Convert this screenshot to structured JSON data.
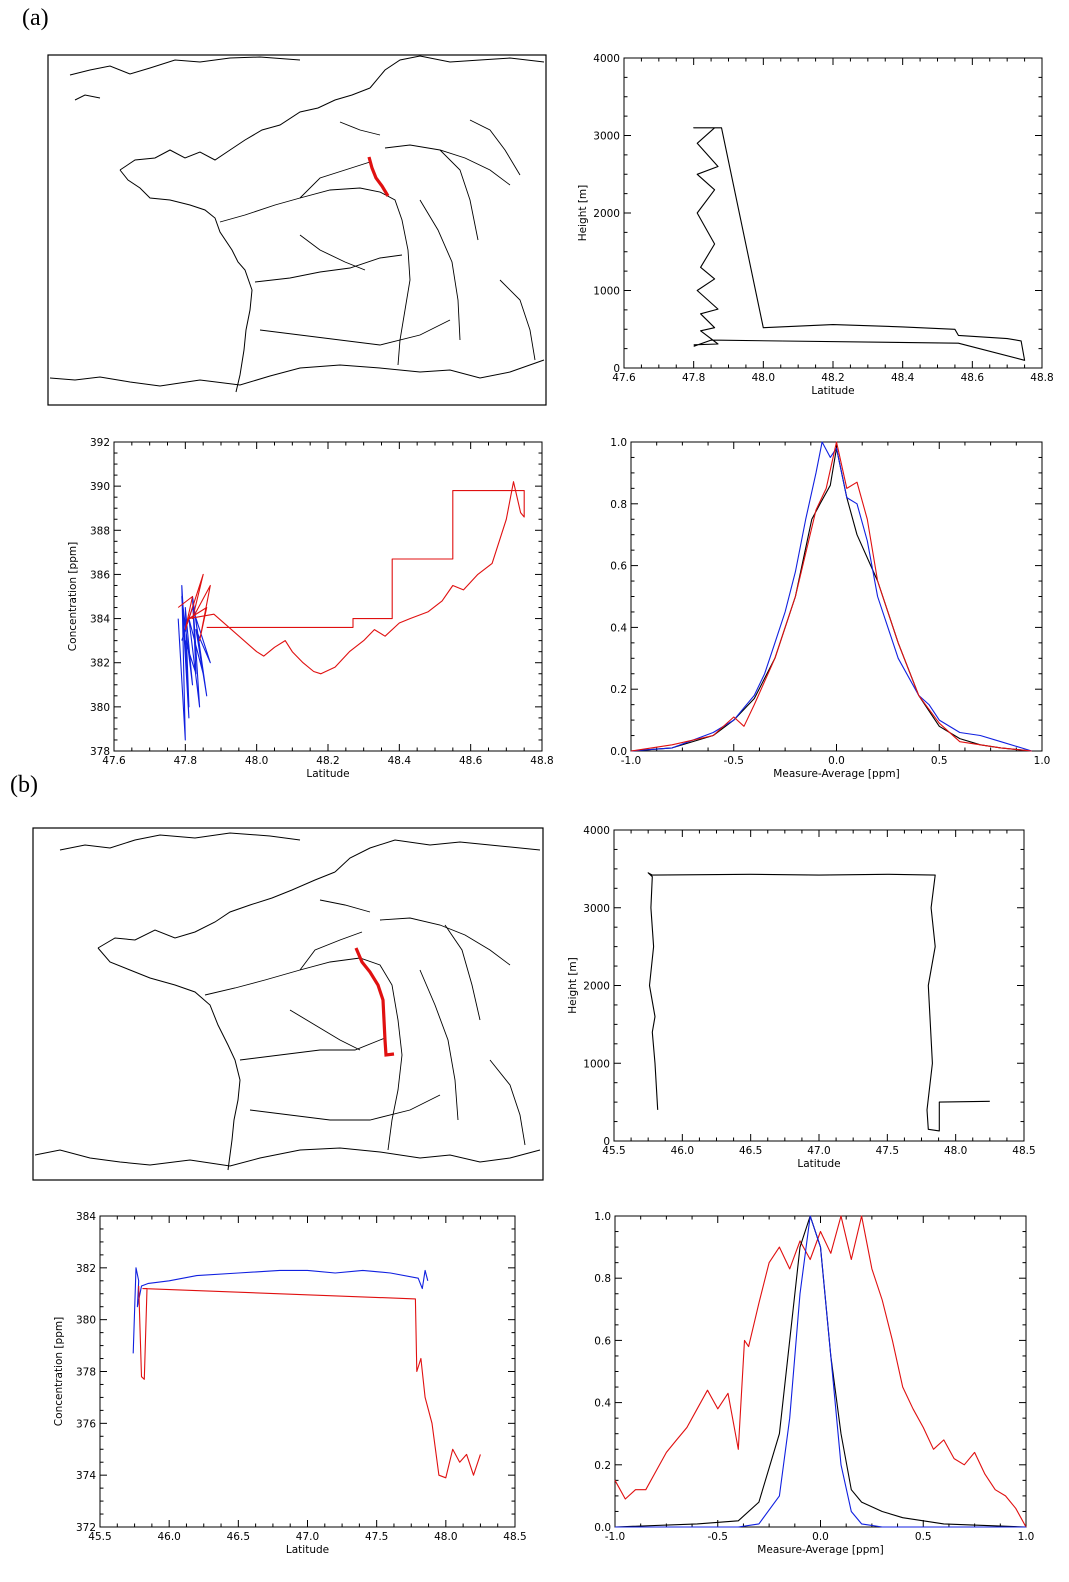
{
  "labels": {
    "a": "(a)",
    "b": "(b)"
  },
  "colors": {
    "red": "#e01010",
    "blue": "#1020e0",
    "black": "#000000"
  },
  "maps": [
    {
      "panel": "a",
      "type": "map",
      "track_color": "red"
    },
    {
      "panel": "b",
      "type": "map",
      "track_color": "red"
    }
  ],
  "chart_data": [
    {
      "id": "a-height",
      "type": "line",
      "xlabel": "Latitude",
      "ylabel": "Height [m]",
      "xlim": [
        47.6,
        48.8
      ],
      "ylim": [
        0,
        4000
      ],
      "xticks": [
        "47.6",
        "47.8",
        "48.0",
        "48.2",
        "48.4",
        "48.6",
        "48.8"
      ],
      "yticks": [
        "0",
        "1000",
        "2000",
        "3000",
        "4000"
      ],
      "series": [
        {
          "color": "black",
          "x": [
            47.8,
            47.87,
            47.82,
            47.86,
            47.82,
            47.87,
            47.81,
            47.86,
            47.82,
            47.86,
            47.81,
            47.86,
            47.81,
            47.87,
            47.81,
            47.86,
            47.8,
            47.88,
            48.0,
            48.2,
            48.4,
            48.55,
            48.56,
            48.7,
            48.74,
            48.75,
            48.56,
            47.85,
            47.8
          ],
          "y": [
            300,
            310,
            480,
            520,
            700,
            760,
            1000,
            1150,
            1300,
            1600,
            2000,
            2300,
            2500,
            2600,
            2900,
            3100,
            3100,
            3100,
            520,
            560,
            530,
            500,
            420,
            380,
            350,
            100,
            320,
            360,
            280
          ]
        }
      ]
    },
    {
      "id": "a-concentration",
      "type": "line",
      "xlabel": "Latitude",
      "ylabel": "Concentration [ppm]",
      "xlim": [
        47.6,
        48.8
      ],
      "ylim": [
        378,
        392
      ],
      "xticks": [
        "47.6",
        "47.8",
        "48.0",
        "48.2",
        "48.4",
        "48.6",
        "48.8"
      ],
      "yticks": [
        "378",
        "380",
        "382",
        "384",
        "386",
        "388",
        "390",
        "392"
      ],
      "series": [
        {
          "color": "blue",
          "x": [
            47.78,
            47.8,
            47.79,
            47.81,
            47.8,
            47.82,
            47.79,
            47.81,
            47.8,
            47.83,
            47.82,
            47.84,
            47.81,
            47.85,
            47.82,
            47.86,
            47.83,
            47.87,
            47.82,
            47.79
          ],
          "y": [
            384,
            378.5,
            385.5,
            380,
            384.5,
            381,
            385,
            379.5,
            383,
            381.5,
            385,
            380,
            384,
            381.5,
            385,
            380.5,
            383.5,
            382,
            384.5,
            383
          ]
        },
        {
          "color": "red",
          "x": [
            47.78,
            47.82,
            47.8,
            47.85,
            47.82,
            47.87,
            47.84,
            47.86,
            47.81,
            47.88,
            48.0,
            48.02,
            48.05,
            48.08,
            48.1,
            48.13,
            48.16,
            48.18,
            48.22,
            48.26,
            48.3,
            48.33,
            48.36,
            48.4,
            48.43,
            48.48,
            48.52,
            48.55,
            48.58,
            48.62,
            48.66,
            48.7,
            48.72,
            48.74,
            48.75,
            48.75,
            48.7,
            48.55,
            48.55,
            48.38,
            48.38,
            48.27,
            48.27,
            47.86
          ],
          "y": [
            384.5,
            385,
            383.5,
            386,
            384,
            385.5,
            383,
            384.5,
            384,
            384.2,
            382.5,
            382.3,
            382.7,
            383,
            382.5,
            382,
            381.6,
            381.5,
            381.8,
            382.5,
            383,
            383.5,
            383.2,
            383.8,
            384,
            384.3,
            384.8,
            385.5,
            385.3,
            386,
            386.5,
            388.5,
            390.2,
            388.8,
            388.6,
            389.8,
            389.8,
            389.8,
            386.7,
            386.7,
            384,
            384,
            383.6,
            383.6
          ]
        }
      ]
    },
    {
      "id": "a-distribution",
      "type": "line",
      "xlabel": "Measure-Average [ppm]",
      "ylabel": "",
      "xlim": [
        -1.0,
        1.0
      ],
      "ylim": [
        0.0,
        1.0
      ],
      "xticks": [
        "-1.0",
        "-0.5",
        "0.0",
        "0.5",
        "1.0"
      ],
      "yticks": [
        "0.0",
        "0.2",
        "0.4",
        "0.6",
        "0.8",
        "1.0"
      ],
      "series": [
        {
          "color": "black",
          "x": [
            -1.0,
            -0.8,
            -0.6,
            -0.5,
            -0.4,
            -0.3,
            -0.2,
            -0.12,
            -0.08,
            -0.03,
            0.0,
            0.05,
            0.1,
            0.2,
            0.3,
            0.4,
            0.5,
            0.6,
            0.7,
            0.8,
            0.95
          ],
          "y": [
            0.0,
            0.01,
            0.05,
            0.1,
            0.17,
            0.3,
            0.5,
            0.75,
            0.8,
            0.86,
            0.98,
            0.82,
            0.7,
            0.55,
            0.35,
            0.18,
            0.08,
            0.04,
            0.02,
            0.01,
            0.0
          ]
        },
        {
          "color": "blue",
          "x": [
            -1.0,
            -0.8,
            -0.6,
            -0.5,
            -0.45,
            -0.4,
            -0.35,
            -0.3,
            -0.25,
            -0.2,
            -0.15,
            -0.1,
            -0.07,
            -0.03,
            0.0,
            0.05,
            0.1,
            0.15,
            0.2,
            0.25,
            0.3,
            0.4,
            0.45,
            0.5,
            0.6,
            0.7,
            0.8,
            0.9,
            0.95
          ],
          "y": [
            0.0,
            0.01,
            0.06,
            0.1,
            0.14,
            0.18,
            0.25,
            0.35,
            0.45,
            0.58,
            0.75,
            0.9,
            1.0,
            0.95,
            0.98,
            0.82,
            0.8,
            0.68,
            0.5,
            0.4,
            0.3,
            0.18,
            0.15,
            0.1,
            0.06,
            0.05,
            0.03,
            0.01,
            0.0
          ]
        },
        {
          "color": "red",
          "x": [
            -1.0,
            -0.8,
            -0.6,
            -0.5,
            -0.45,
            -0.4,
            -0.3,
            -0.2,
            -0.1,
            -0.05,
            0.0,
            0.05,
            0.1,
            0.15,
            0.2,
            0.3,
            0.4,
            0.5,
            0.6,
            0.7,
            0.8,
            0.95
          ],
          "y": [
            0.0,
            0.02,
            0.05,
            0.11,
            0.08,
            0.15,
            0.3,
            0.5,
            0.78,
            0.85,
            1.0,
            0.85,
            0.87,
            0.75,
            0.55,
            0.35,
            0.18,
            0.09,
            0.03,
            0.02,
            0.01,
            0.0
          ]
        }
      ]
    },
    {
      "id": "b-height",
      "type": "line",
      "xlabel": "Latitude",
      "ylabel": "Height [m]",
      "xlim": [
        45.5,
        48.5
      ],
      "ylim": [
        0,
        4000
      ],
      "xticks": [
        "45.5",
        "46.0",
        "46.5",
        "47.0",
        "47.5",
        "48.0",
        "48.5"
      ],
      "yticks": [
        "0",
        "1000",
        "2000",
        "3000",
        "4000"
      ],
      "series": [
        {
          "color": "black",
          "x": [
            45.82,
            45.8,
            45.78,
            45.8,
            45.76,
            45.79,
            45.77,
            45.78,
            45.75,
            45.78,
            46.5,
            47.0,
            47.5,
            47.85,
            47.82,
            47.85,
            47.8,
            47.83,
            47.79,
            47.8,
            47.88,
            47.88,
            48.25
          ],
          "y": [
            400,
            1000,
            1400,
            1600,
            2000,
            2500,
            3000,
            3400,
            3450,
            3420,
            3430,
            3420,
            3430,
            3420,
            3000,
            2500,
            2000,
            1000,
            400,
            150,
            130,
            500,
            510
          ]
        }
      ]
    },
    {
      "id": "b-concentration",
      "type": "line",
      "xlabel": "Latitude",
      "ylabel": "Concentration [ppm]",
      "xlim": [
        45.5,
        48.5
      ],
      "ylim": [
        372,
        384
      ],
      "xticks": [
        "45.5",
        "46.0",
        "46.5",
        "47.0",
        "47.5",
        "48.0",
        "48.5"
      ],
      "yticks": [
        "372",
        "374",
        "376",
        "378",
        "380",
        "382",
        "384"
      ],
      "series": [
        {
          "color": "blue",
          "x": [
            45.74,
            45.76,
            45.78,
            45.77,
            45.8,
            45.85,
            46.0,
            46.2,
            46.5,
            46.8,
            47.0,
            47.2,
            47.4,
            47.6,
            47.8,
            47.83,
            47.85,
            47.87
          ],
          "y": [
            378.7,
            382,
            381.5,
            380.5,
            381.3,
            381.4,
            381.5,
            381.7,
            381.8,
            381.9,
            381.9,
            381.8,
            381.9,
            381.8,
            381.6,
            381.2,
            381.9,
            381.5
          ]
        },
        {
          "color": "red",
          "x": [
            45.78,
            45.8,
            45.82,
            45.84,
            45.81,
            47.78,
            47.79,
            47.82,
            47.85,
            47.9,
            47.95,
            48.0,
            48.05,
            48.1,
            48.15,
            48.2,
            48.25
          ],
          "y": [
            381.3,
            377.8,
            377.7,
            381.2,
            381.2,
            380.8,
            378,
            378.5,
            377,
            376,
            374,
            373.9,
            375,
            374.5,
            374.8,
            374,
            374.8
          ]
        }
      ]
    },
    {
      "id": "b-distribution",
      "type": "line",
      "xlabel": "Measure-Average [ppm]",
      "ylabel": "",
      "xlim": [
        -1.0,
        1.0
      ],
      "ylim": [
        0.0,
        1.0
      ],
      "xticks": [
        "-1.0",
        "-0.5",
        "0.0",
        "0.5",
        "1.0"
      ],
      "yticks": [
        "0.0",
        "0.2",
        "0.4",
        "0.6",
        "0.8",
        "1.0"
      ],
      "series": [
        {
          "color": "red",
          "x": [
            -1.0,
            -0.95,
            -0.9,
            -0.85,
            -0.8,
            -0.75,
            -0.7,
            -0.65,
            -0.6,
            -0.55,
            -0.5,
            -0.45,
            -0.4,
            -0.37,
            -0.35,
            -0.3,
            -0.25,
            -0.2,
            -0.15,
            -0.1,
            -0.05,
            0.0,
            0.05,
            0.1,
            0.15,
            0.2,
            0.25,
            0.3,
            0.35,
            0.4,
            0.45,
            0.5,
            0.55,
            0.6,
            0.65,
            0.7,
            0.75,
            0.8,
            0.85,
            0.9,
            0.95,
            1.0
          ],
          "y": [
            0.15,
            0.09,
            0.12,
            0.12,
            0.18,
            0.24,
            0.28,
            0.32,
            0.38,
            0.44,
            0.38,
            0.43,
            0.25,
            0.6,
            0.58,
            0.72,
            0.85,
            0.9,
            0.83,
            0.92,
            0.86,
            0.95,
            0.88,
            1.0,
            0.86,
            1.0,
            0.83,
            0.73,
            0.6,
            0.45,
            0.38,
            0.32,
            0.25,
            0.28,
            0.22,
            0.2,
            0.24,
            0.17,
            0.12,
            0.1,
            0.06,
            0.0
          ]
        },
        {
          "color": "black",
          "x": [
            -1.0,
            -0.6,
            -0.4,
            -0.3,
            -0.2,
            -0.15,
            -0.1,
            -0.05,
            0.0,
            0.05,
            0.1,
            0.15,
            0.2,
            0.3,
            0.4,
            0.6,
            1.0
          ],
          "y": [
            0.0,
            0.01,
            0.02,
            0.08,
            0.3,
            0.6,
            0.9,
            1.0,
            0.9,
            0.55,
            0.3,
            0.12,
            0.08,
            0.05,
            0.03,
            0.01,
            0.0
          ]
        },
        {
          "color": "blue",
          "x": [
            -1.0,
            -0.4,
            -0.3,
            -0.2,
            -0.15,
            -0.1,
            -0.05,
            0.0,
            0.05,
            0.1,
            0.15,
            0.2,
            0.3,
            0.4,
            1.0
          ],
          "y": [
            0.0,
            0.0,
            0.01,
            0.1,
            0.35,
            0.75,
            1.0,
            0.9,
            0.55,
            0.2,
            0.05,
            0.01,
            0.0,
            0.0,
            0.0
          ]
        }
      ]
    }
  ]
}
